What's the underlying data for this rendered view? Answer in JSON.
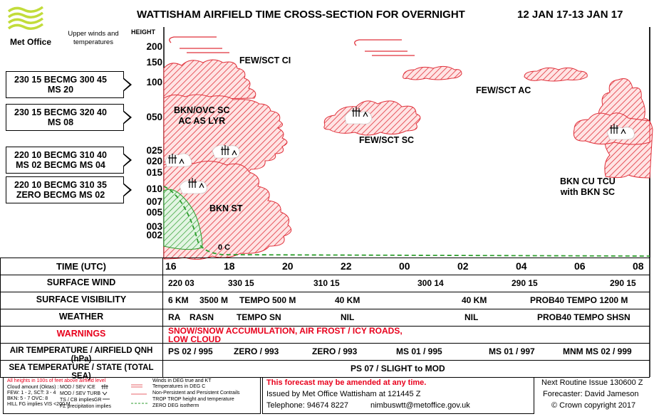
{
  "header": {
    "brand": "Met Office",
    "title": "WATTISHAM AIRFIELD TIME CROSS-SECTION FOR OVERNIGHT",
    "date_range": "12 JAN 17-13 JAN 17",
    "upper_winds_label": "Upper winds and temperatures"
  },
  "upper_winds": [
    {
      "line1": "230 15 BECMG 300 45",
      "line2": "MS 20"
    },
    {
      "line1": "230 15 BECMG 320 40",
      "line2": "MS 08"
    },
    {
      "line1": "220 10 BECMG 310 40",
      "line2": "MS 02 BECMG MS 04"
    },
    {
      "line1": "220 10 BECMG 310 35",
      "line2": "ZERO BECMG MS 02"
    }
  ],
  "height_axis": {
    "title": "HEIGHT",
    "labels": [
      "200",
      "150",
      "100",
      "050",
      "025",
      "020",
      "015",
      "010",
      "007",
      "005",
      "003",
      "002"
    ]
  },
  "cloud_labels": {
    "ci": "FEW/SCT CI",
    "sc_lyr_1": "BKN/OVC SC",
    "sc_lyr_2": "AC AS LYR",
    "ac": "FEW/SCT AC",
    "sc": "FEW/SCT SC",
    "st": "BKN ST",
    "tcu_1": "BKN CU TCU",
    "tcu_2": "with BKN SC",
    "zero": "0 C"
  },
  "time_row": {
    "label": "TIME (UTC)",
    "ticks": [
      "16",
      "18",
      "20",
      "22",
      "00",
      "02",
      "04",
      "06",
      "08"
    ]
  },
  "surface_wind": {
    "label": "SURFACE WIND",
    "values": [
      "220 03",
      "330 15",
      "310 15",
      "300 14",
      "290 15",
      "290 15"
    ]
  },
  "surface_visibility": {
    "label": "SURFACE VISIBILITY",
    "values": [
      "6 KM",
      "3500 M",
      "TEMPO 500 M",
      "40 KM",
      "40 KM",
      "PROB40 TEMPO 1200 M"
    ]
  },
  "weather": {
    "label": "WEATHER",
    "values": [
      "RA",
      "RASN",
      "TEMPO SN",
      "NIL",
      "NIL",
      "PROB40 TEMPO SHSN"
    ]
  },
  "warnings": {
    "label": "WARNINGS",
    "line1": "SNOW/SNOW ACCUMULATION, AIR FROST / ICY ROADS,",
    "line2": "LOW CLOUD",
    "color": "#e8001c"
  },
  "air_temp": {
    "label": "AIR TEMPERATURE / AIRFIELD QNH (hPa)",
    "values": [
      "PS 02 / 995",
      "ZERO / 993",
      "ZERO / 993",
      "MS 01 / 995",
      "MS 01 / 997",
      "MNM MS 02 / 999"
    ]
  },
  "sea_temp": {
    "label": "SEA TEMPERATURE / STATE (TOTAL SEA)",
    "value": "PS 07 / SLIGHT to MOD"
  },
  "footer": {
    "key_heights": "All heights in 100s of feet above airfield level",
    "key_cloud_title": "Cloud amount (Oktas) :",
    "key_cloud_1": "FEW: 1 - 2, SCT: 3 - 4",
    "key_cloud_2": "BKN: 5 - 7  OVC: 8",
    "key_hill": "HILL FG implies VIS <200 M",
    "key_ice": "MOD / SEV ICE",
    "key_turb": "MOD / SEV TURB",
    "key_ts": "TS / CB implies",
    "key_fz": "FZ precipitation implies",
    "key_winds_1": "Winds in DEG true and KT",
    "key_winds_2": "Temperatures in DEG C",
    "key_contrails": "Non-Persistent and Persistent Contrails",
    "key_trop": "TROP  TROP height and temperature",
    "key_zero": "ZERO DEG isotherm",
    "key_zero_sym": "0 C",
    "key_trop_sym": "TROP",
    "key_gr": "GR",
    "amend": "This forecast may be amended at any time.",
    "issued": "Issued by Met Office Wattisham at  121445 Z",
    "telephone": "Telephone: 94674 8227",
    "email": "nimbuswtt@metoffice.gov.uk",
    "next_issue": "Next Routine Issue 130600 Z",
    "forecaster": "Forecaster: David Jameson",
    "copyright": "© Crown copyright 2017"
  },
  "colors": {
    "hatch": "#e0303a",
    "cloud_fill": "#ffe4e4",
    "green": "#2e9e2e",
    "warning": "#e8001c",
    "logo": "#27a9c9"
  }
}
